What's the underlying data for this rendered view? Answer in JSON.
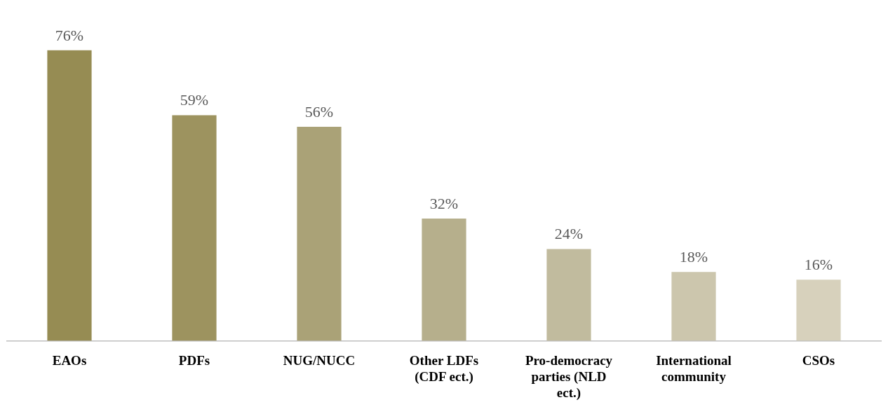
{
  "chart_data": {
    "type": "bar",
    "categories": [
      "EAOs",
      "PDFs",
      "NUG/NUCC",
      "Other LDFs (CDF ect.)",
      "Pro-democracy parties (NLD ect.)",
      "International community",
      "CSOs"
    ],
    "values": [
      76,
      59,
      56,
      32,
      24,
      18,
      16
    ],
    "colors": [
      "#968c53",
      "#9d935f",
      "#aaa277",
      "#b6af8c",
      "#c1bb9e",
      "#ccc6ad",
      "#d7d1bc"
    ],
    "value_labels": [
      "76%",
      "59%",
      "56%",
      "32%",
      "24%",
      "18%",
      "16%"
    ],
    "grid": false,
    "legend": false
  }
}
